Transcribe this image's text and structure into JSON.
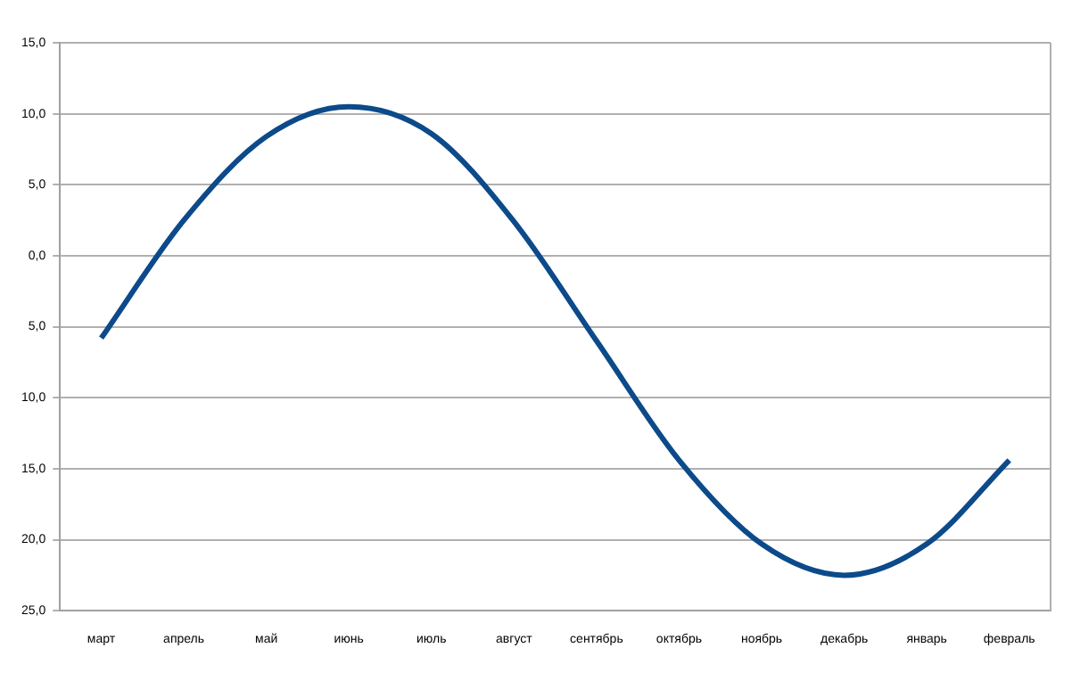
{
  "chart_data": {
    "type": "line",
    "categories": [
      "март",
      "апрель",
      "май",
      "июнь",
      "июль",
      "август",
      "сентябрь",
      "октябрь",
      "ноябрь",
      "декабрь",
      "январь",
      "февраль"
    ],
    "series": [
      {
        "color": "#0c4a8a",
        "values": [
          -5.8,
          2.5,
          8.4,
          10.5,
          8.6,
          2.4,
          -6.0,
          -14.4,
          -20.3,
          -22.5,
          -20.3,
          -14.4
        ]
      }
    ],
    "ylim": [
      -25,
      15
    ],
    "yticks": [
      {
        "value": 15,
        "label": "15,0"
      },
      {
        "value": 10,
        "label": "10,0"
      },
      {
        "value": 5,
        "label": "5,0"
      },
      {
        "value": 0,
        "label": "0,0"
      },
      {
        "value": -5,
        "label": "5,0"
      },
      {
        "value": -10,
        "label": "10,0"
      },
      {
        "value": -15,
        "label": "15,0"
      },
      {
        "value": -20,
        "label": "20,0"
      },
      {
        "value": -25,
        "label": "25,0"
      }
    ],
    "grid": "y",
    "legend": false,
    "marker": "none",
    "line_style": "solid"
  }
}
